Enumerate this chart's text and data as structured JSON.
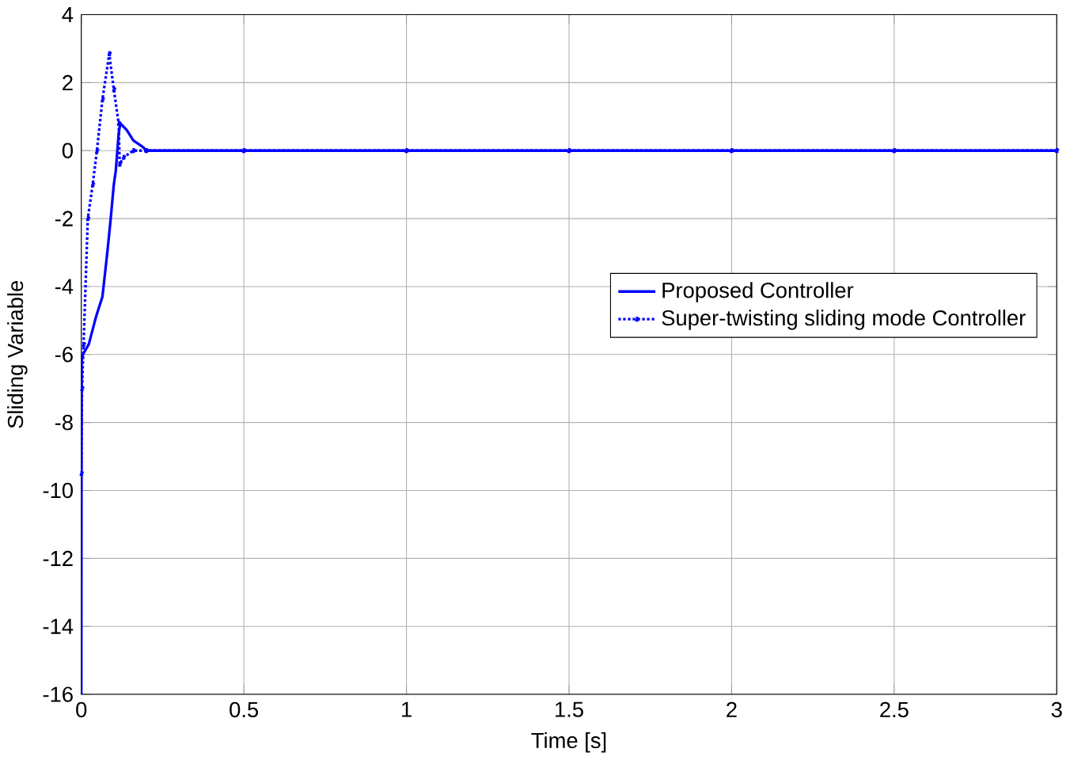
{
  "chart_data": {
    "type": "line",
    "xlabel": "Time [s]",
    "ylabel": "Sliding Variable",
    "xlim": [
      0,
      3
    ],
    "ylim": [
      -16,
      4
    ],
    "xticks": [
      0,
      0.5,
      1,
      1.5,
      2,
      2.5,
      3
    ],
    "yticks": [
      -16,
      -14,
      -12,
      -10,
      -8,
      -6,
      -4,
      -2,
      0,
      2,
      4
    ],
    "grid": true,
    "legend": "right",
    "series": [
      {
        "name": "Proposed Controller",
        "color": "#0000ff",
        "line_style": "solid",
        "marker": "none",
        "x": [
          0,
          0.001,
          0.005,
          0.023,
          0.045,
          0.065,
          0.08,
          0.09,
          0.1,
          0.106,
          0.115,
          0.12,
          0.14,
          0.16,
          0.19,
          0.2,
          0.5,
          1,
          1.5,
          2,
          2.5,
          3
        ],
        "values": [
          -16,
          -6.2,
          -6,
          -5.7,
          -4.9,
          -4.3,
          -3,
          -2.05,
          -1,
          -0.6,
          0.5,
          0.8,
          0.6,
          0.3,
          0.1,
          0,
          0,
          0,
          0,
          0,
          0,
          0
        ]
      },
      {
        "name": "Super-twisting sliding mode Controller",
        "color": "#0000ff",
        "line_style": "dotted",
        "marker": "circle",
        "x": [
          0,
          0.002,
          0.007,
          0.02,
          0.035,
          0.048,
          0.065,
          0.086,
          0.1,
          0.115,
          0.118,
          0.13,
          0.16,
          0.2,
          0.5,
          1,
          1.5,
          2,
          2.5,
          3
        ],
        "values": [
          -9.5,
          -7,
          -5.7,
          -2,
          -1,
          0,
          1.5,
          2.85,
          1.8,
          0.8,
          -0.4,
          -0.2,
          0,
          0,
          0,
          0,
          0,
          0,
          0,
          0
        ]
      }
    ]
  }
}
